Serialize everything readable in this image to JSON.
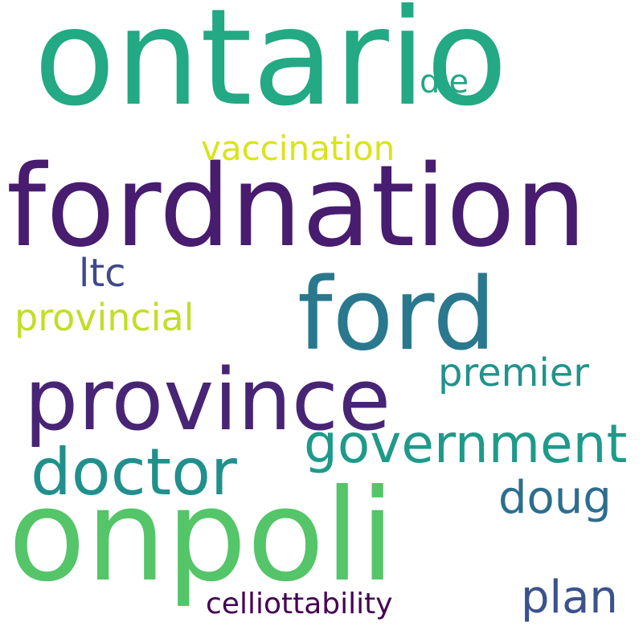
{
  "word_cloud": {
    "words": {
      "ontario": {
        "text": "ontario",
        "color": "#23a983"
      },
      "fordnation": {
        "text": "fordnation",
        "color": "#481c6e"
      },
      "ford": {
        "text": "ford",
        "color": "#2a788e"
      },
      "province": {
        "text": "province",
        "color": "#482475"
      },
      "onpoli": {
        "text": "onpoli",
        "color": "#54c568"
      },
      "doctor": {
        "text": "doctor",
        "color": "#21908d"
      },
      "government": {
        "text": "government",
        "color": "#1f9a8a"
      },
      "premier": {
        "text": "premier",
        "color": "#22928c"
      },
      "doug": {
        "text": "doug",
        "color": "#2d6e8e"
      },
      "plan": {
        "text": "plan",
        "color": "#3b528b"
      },
      "ltc": {
        "text": "ltc",
        "color": "#3e4a89"
      },
      "provincial": {
        "text": "provincial",
        "color": "#c0df25"
      },
      "vaccination": {
        "text": "vaccination",
        "color": "#dae319"
      },
      "die": {
        "text": "die",
        "color": "#22a785"
      },
      "celliottability": {
        "text": "celliottability",
        "color": "#440154"
      }
    }
  }
}
